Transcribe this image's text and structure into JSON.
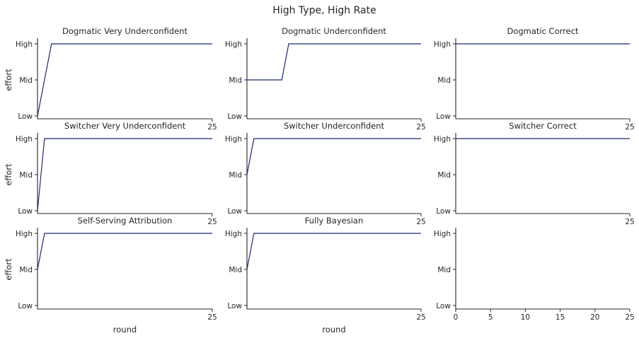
{
  "suptitle": "High Type, High Rate",
  "series_color": "#1b2a6b",
  "chart_data": [
    {
      "type": "line",
      "title": "Dogmatic Very Underconfident",
      "xlabel": "",
      "ylabel": "effort",
      "y_categories": [
        "Low",
        "Mid",
        "High"
      ],
      "xlim": [
        0,
        25
      ],
      "x_ticks": [
        25
      ],
      "series": [
        {
          "x": [
            0,
            2,
            25
          ],
          "y": [
            "Low",
            "High",
            "High"
          ]
        }
      ]
    },
    {
      "type": "line",
      "title": "Dogmatic Underconfident",
      "xlabel": "",
      "ylabel": "",
      "y_categories": [
        "Low",
        "Mid",
        "High"
      ],
      "xlim": [
        0,
        25
      ],
      "x_ticks": [
        25
      ],
      "series": [
        {
          "x": [
            0,
            5,
            6,
            25
          ],
          "y": [
            "Mid",
            "Mid",
            "High",
            "High"
          ]
        }
      ]
    },
    {
      "type": "line",
      "title": "Dogmatic Correct",
      "xlabel": "",
      "ylabel": "",
      "y_categories": [
        "Low",
        "Mid",
        "High"
      ],
      "xlim": [
        0,
        25
      ],
      "x_ticks": [
        25
      ],
      "series": [
        {
          "x": [
            0,
            25
          ],
          "y": [
            "High",
            "High"
          ]
        }
      ]
    },
    {
      "type": "line",
      "title": "Switcher Very Underconfident",
      "xlabel": "",
      "ylabel": "effort",
      "y_categories": [
        "Low",
        "Mid",
        "High"
      ],
      "xlim": [
        0,
        25
      ],
      "x_ticks": [
        25
      ],
      "series": [
        {
          "x": [
            0,
            1,
            25
          ],
          "y": [
            "Low",
            "High",
            "High"
          ]
        }
      ]
    },
    {
      "type": "line",
      "title": "Switcher Underconfident",
      "xlabel": "",
      "ylabel": "",
      "y_categories": [
        "Low",
        "Mid",
        "High"
      ],
      "xlim": [
        0,
        25
      ],
      "x_ticks": [
        25
      ],
      "series": [
        {
          "x": [
            0,
            1,
            25
          ],
          "y": [
            "Mid",
            "High",
            "High"
          ]
        }
      ]
    },
    {
      "type": "line",
      "title": "Switcher Correct",
      "xlabel": "",
      "ylabel": "",
      "y_categories": [
        "Low",
        "Mid",
        "High"
      ],
      "xlim": [
        0,
        25
      ],
      "x_ticks": [
        25
      ],
      "series": [
        {
          "x": [
            0,
            25
          ],
          "y": [
            "High",
            "High"
          ]
        }
      ]
    },
    {
      "type": "line",
      "title": "Self-Serving Attribution",
      "xlabel": "round",
      "ylabel": "effort",
      "y_categories": [
        "Low",
        "Mid",
        "High"
      ],
      "xlim": [
        0,
        25
      ],
      "x_ticks": [
        25
      ],
      "series": [
        {
          "x": [
            0,
            1,
            25
          ],
          "y": [
            "Mid",
            "High",
            "High"
          ]
        }
      ]
    },
    {
      "type": "line",
      "title": "Fully Bayesian",
      "xlabel": "round",
      "ylabel": "",
      "y_categories": [
        "Low",
        "Mid",
        "High"
      ],
      "xlim": [
        0,
        25
      ],
      "x_ticks": [
        25
      ],
      "series": [
        {
          "x": [
            0,
            1,
            25
          ],
          "y": [
            "Mid",
            "High",
            "High"
          ]
        }
      ]
    },
    {
      "type": "line",
      "title": "",
      "xlabel": "",
      "ylabel": "",
      "y_categories": [
        "Low",
        "Mid",
        "High"
      ],
      "xlim": [
        0,
        25
      ],
      "x_ticks": [
        0,
        5,
        10,
        15,
        20,
        25
      ],
      "series": []
    }
  ]
}
